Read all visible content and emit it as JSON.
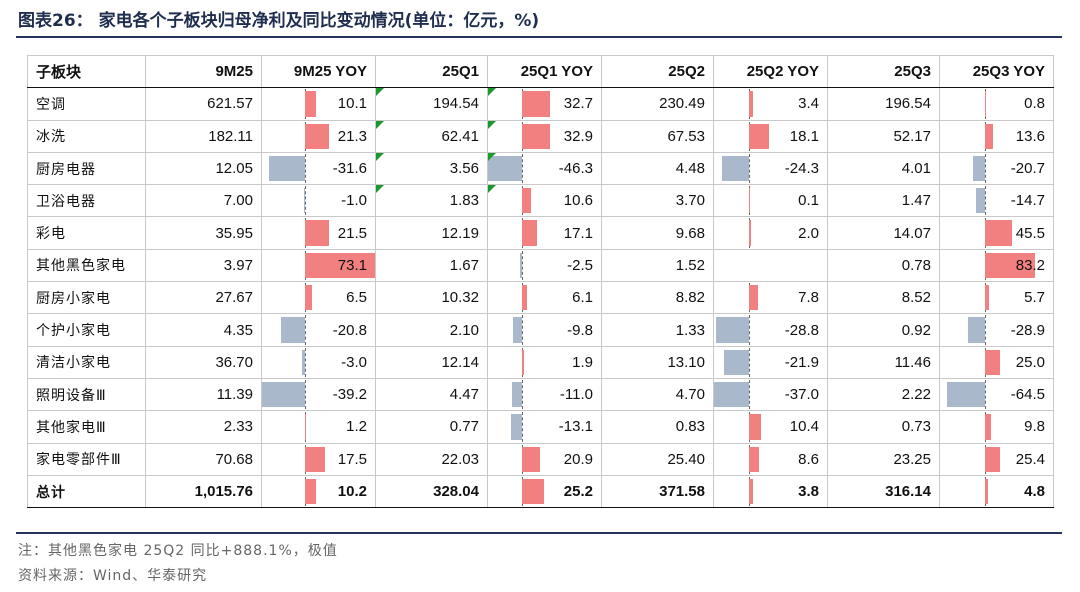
{
  "title": "图表26： 家电各个子板块归母净利及同比变动情况(单位：亿元，%)",
  "table": {
    "headers": [
      "子板块",
      "9M25",
      "9M25 YOY",
      "25Q1",
      "25Q1 YOY",
      "25Q2",
      "25Q2 YOY",
      "25Q3",
      "25Q3 YOY"
    ],
    "rows": [
      {
        "cat": "空调",
        "v9m": "621.57",
        "y9m": "10.1",
        "vq1": "194.54",
        "yq1": "32.7",
        "vq2": "230.49",
        "yq2": "3.4",
        "vq3": "196.54",
        "yq3": "0.8"
      },
      {
        "cat": "冰洗",
        "v9m": "182.11",
        "y9m": "21.3",
        "vq1": "62.41",
        "yq1": "32.9",
        "vq2": "67.53",
        "yq2": "18.1",
        "vq3": "52.17",
        "yq3": "13.6"
      },
      {
        "cat": "厨房电器",
        "v9m": "12.05",
        "y9m": "-31.6",
        "vq1": "3.56",
        "yq1": "-46.3",
        "vq2": "4.48",
        "yq2": "-24.3",
        "vq3": "4.01",
        "yq3": "-20.7"
      },
      {
        "cat": "卫浴电器",
        "v9m": "7.00",
        "y9m": "-1.0",
        "vq1": "1.83",
        "yq1": "10.6",
        "vq2": "3.70",
        "yq2": "0.1",
        "vq3": "1.47",
        "yq3": "-14.7"
      },
      {
        "cat": "彩电",
        "v9m": "35.95",
        "y9m": "21.5",
        "vq1": "12.19",
        "yq1": "17.1",
        "vq2": "9.68",
        "yq2": "2.0",
        "vq3": "14.07",
        "yq3": "45.5"
      },
      {
        "cat": "其他黑色家电",
        "v9m": "3.97",
        "y9m": "73.1",
        "vq1": "1.67",
        "yq1": "-2.5",
        "vq2": "1.52",
        "yq2": "",
        "vq3": "0.78",
        "yq3": "83.2"
      },
      {
        "cat": "厨房小家电",
        "v9m": "27.67",
        "y9m": "6.5",
        "vq1": "10.32",
        "yq1": "6.1",
        "vq2": "8.82",
        "yq2": "7.8",
        "vq3": "8.52",
        "yq3": "5.7"
      },
      {
        "cat": "个护小家电",
        "v9m": "4.35",
        "y9m": "-20.8",
        "vq1": "2.10",
        "yq1": "-9.8",
        "vq2": "1.33",
        "yq2": "-28.8",
        "vq3": "0.92",
        "yq3": "-28.9"
      },
      {
        "cat": "清洁小家电",
        "v9m": "36.70",
        "y9m": "-3.0",
        "vq1": "12.14",
        "yq1": "1.9",
        "vq2": "13.10",
        "yq2": "-21.9",
        "vq3": "11.46",
        "yq3": "25.0"
      },
      {
        "cat": "照明设备Ⅲ",
        "v9m": "11.39",
        "y9m": "-39.2",
        "vq1": "4.47",
        "yq1": "-11.0",
        "vq2": "4.70",
        "yq2": "-37.0",
        "vq3": "2.22",
        "yq3": "-64.5"
      },
      {
        "cat": "其他家电Ⅲ",
        "v9m": "2.33",
        "y9m": "1.2",
        "vq1": "0.77",
        "yq1": "-13.1",
        "vq2": "0.83",
        "yq2": "10.4",
        "vq3": "0.73",
        "yq3": "9.8"
      },
      {
        "cat": "家电零部件Ⅲ",
        "v9m": "70.68",
        "y9m": "17.5",
        "vq1": "22.03",
        "yq1": "20.9",
        "vq2": "25.40",
        "yq2": "8.6",
        "vq3": "23.25",
        "yq3": "25.4"
      },
      {
        "cat": "总计",
        "v9m": "1,015.76",
        "y9m": "10.2",
        "vq1": "328.04",
        "yq1": "25.2",
        "vq2": "371.58",
        "yq2": "3.8",
        "vq3": "316.14",
        "yq3": "4.8",
        "total": true
      }
    ]
  },
  "flags": {
    "rows": [
      0,
      1,
      2,
      3
    ],
    "cols": [
      "vq1",
      "yq1"
    ],
    "color": "#1a9a2c"
  },
  "bar_scales": {
    "y9m": {
      "zero": 0.38,
      "span": 100
    },
    "yq1": {
      "zero": 0.3,
      "span": 130
    },
    "yq2": {
      "zero": 0.31,
      "span": 100
    },
    "yq3": {
      "zero": 0.4,
      "span": 190
    }
  },
  "colors": {
    "positive": "#f28080",
    "negative": "#a9b8cb",
    "title": "#1f2d4e",
    "rule": "#24345b"
  },
  "notes": {
    "note": "注：其他黑色家电 25Q2 同比+888.1%，极值",
    "source": "资料来源：Wind、华泰研究"
  }
}
